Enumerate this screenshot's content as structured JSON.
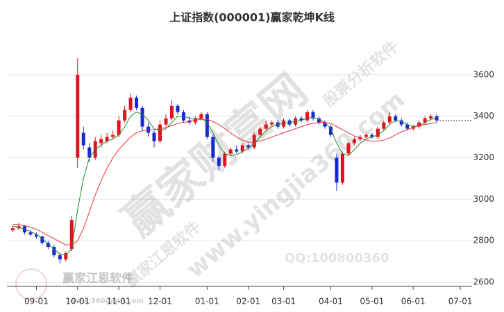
{
  "chart_data": {
    "type": "candlestick",
    "title": "上证指数(000001)赢家乾坤K线",
    "watermarks": [
      "赢家财富网",
      "www.yingjia360.com",
      "股票分析软件",
      "赢家江恩软件",
      "赢家江恩软件",
      "QQ:100800360",
      "www.360gann.com"
    ],
    "x": [
      0,
      1,
      2,
      3,
      4,
      5,
      6,
      7,
      8,
      9,
      10,
      11,
      12,
      13,
      14,
      15,
      16,
      17,
      18,
      19,
      20,
      21,
      22,
      23,
      24,
      25,
      26,
      27,
      28,
      29,
      30,
      31,
      32,
      33,
      34,
      35,
      36,
      37,
      38,
      39,
      40,
      41,
      42,
      43,
      44,
      45,
      46,
      47,
      48,
      49,
      50,
      51,
      52,
      53,
      54,
      55,
      56,
      57,
      58,
      59,
      60,
      61,
      62,
      63,
      64,
      65,
      66,
      67,
      68,
      69,
      70,
      71,
      72
    ],
    "open": [
      2850,
      2860,
      2870,
      2840,
      2830,
      2820,
      2790,
      2770,
      2730,
      2710,
      2760,
      3200,
      3320,
      3250,
      3200,
      3270,
      3280,
      3300,
      3310,
      3380,
      3430,
      3490,
      3440,
      3350,
      3320,
      3280,
      3360,
      3390,
      3450,
      3420,
      3380,
      3370,
      3390,
      3410,
      3300,
      3200,
      3160,
      3220,
      3240,
      3230,
      3260,
      3250,
      3310,
      3340,
      3360,
      3370,
      3350,
      3380,
      3360,
      3390,
      3380,
      3420,
      3390,
      3370,
      3350,
      3200,
      3080,
      3220,
      3270,
      3290,
      3300,
      3310,
      3300,
      3340,
      3370,
      3400,
      3380,
      3360,
      3340,
      3350,
      3370,
      3390,
      3400
    ],
    "high": [
      2875,
      2885,
      2875,
      2850,
      2840,
      2825,
      2800,
      2780,
      2740,
      2750,
      2920,
      3680,
      3350,
      3270,
      3300,
      3310,
      3320,
      3330,
      3400,
      3450,
      3510,
      3500,
      3450,
      3370,
      3330,
      3380,
      3410,
      3480,
      3460,
      3430,
      3400,
      3400,
      3420,
      3420,
      3310,
      3210,
      3230,
      3250,
      3260,
      3270,
      3270,
      3320,
      3350,
      3380,
      3380,
      3380,
      3390,
      3390,
      3400,
      3400,
      3430,
      3430,
      3400,
      3380,
      3360,
      3220,
      3230,
      3280,
      3300,
      3310,
      3320,
      3320,
      3350,
      3380,
      3420,
      3410,
      3390,
      3370,
      3360,
      3380,
      3400,
      3410,
      3410
    ],
    "low": [
      2840,
      2850,
      2830,
      2820,
      2810,
      2780,
      2760,
      2720,
      2690,
      2700,
      2750,
      3150,
      3240,
      3180,
      3190,
      3250,
      3270,
      3290,
      3300,
      3370,
      3420,
      3430,
      3330,
      3300,
      3250,
      3270,
      3350,
      3380,
      3410,
      3370,
      3360,
      3360,
      3380,
      3290,
      3180,
      3140,
      3150,
      3210,
      3220,
      3220,
      3240,
      3240,
      3300,
      3330,
      3350,
      3340,
      3340,
      3350,
      3350,
      3370,
      3370,
      3380,
      3360,
      3340,
      3300,
      3040,
      3070,
      3210,
      3260,
      3280,
      3290,
      3290,
      3290,
      3330,
      3360,
      3370,
      3350,
      3330,
      3330,
      3340,
      3360,
      3380,
      3370
    ],
    "close": [
      2860,
      2870,
      2840,
      2830,
      2820,
      2790,
      2770,
      2730,
      2710,
      2740,
      2900,
      3600,
      3260,
      3200,
      3280,
      3290,
      3300,
      3310,
      3380,
      3430,
      3490,
      3440,
      3350,
      3320,
      3280,
      3360,
      3390,
      3450,
      3420,
      3380,
      3370,
      3390,
      3410,
      3300,
      3200,
      3160,
      3220,
      3240,
      3230,
      3260,
      3250,
      3310,
      3340,
      3360,
      3370,
      3350,
      3380,
      3360,
      3390,
      3380,
      3420,
      3390,
      3370,
      3350,
      3310,
      3080,
      3220,
      3270,
      3290,
      3300,
      3310,
      3300,
      3340,
      3370,
      3400,
      3380,
      3360,
      3340,
      3350,
      3370,
      3390,
      3400,
      3380
    ],
    "up_color": "#e0141e",
    "down_color": "#1a28d0",
    "series": [
      {
        "color": "#1f8a2a",
        "values": [
          2870,
          2865,
          2855,
          2845,
          2830,
          2810,
          2785,
          2760,
          2735,
          2730,
          2760,
          2950,
          3100,
          3200,
          3240,
          3260,
          3280,
          3290,
          3310,
          3350,
          3400,
          3420,
          3410,
          3380,
          3340,
          3330,
          3340,
          3370,
          3400,
          3400,
          3390,
          3385,
          3390,
          3370,
          3320,
          3260,
          3220,
          3210,
          3215,
          3230,
          3245,
          3270,
          3300,
          3330,
          3350,
          3360,
          3365,
          3370,
          3375,
          3380,
          3390,
          3395,
          3385,
          3370,
          3340,
          3270,
          3220,
          3210,
          3240,
          3270,
          3290,
          3300,
          3310,
          3330,
          3360,
          3380,
          3375,
          3360,
          3350,
          3355,
          3370,
          3385,
          3390
        ]
      },
      {
        "color": "#e8303a",
        "values": [
          2880,
          2878,
          2872,
          2865,
          2855,
          2840,
          2825,
          2810,
          2795,
          2780,
          2780,
          2800,
          2860,
          2940,
          3020,
          3090,
          3150,
          3200,
          3240,
          3270,
          3300,
          3320,
          3330,
          3335,
          3335,
          3340,
          3345,
          3355,
          3365,
          3370,
          3375,
          3380,
          3385,
          3385,
          3375,
          3360,
          3340,
          3320,
          3300,
          3285,
          3275,
          3275,
          3280,
          3290,
          3300,
          3310,
          3320,
          3330,
          3340,
          3350,
          3360,
          3365,
          3370,
          3370,
          3365,
          3350,
          3335,
          3320,
          3305,
          3295,
          3285,
          3280,
          3280,
          3285,
          3295,
          3310,
          3325,
          3335,
          3345,
          3355,
          3360,
          3365,
          3370
        ]
      }
    ],
    "xlim": [
      -1,
      78
    ],
    "xticks": [
      {
        "value": 4,
        "label": "09-01"
      },
      {
        "value": 11,
        "label": "10-01"
      },
      {
        "value": 18,
        "label": "11-01"
      },
      {
        "value": 25,
        "label": "12-01"
      },
      {
        "value": 33,
        "label": "01-01"
      },
      {
        "value": 40,
        "label": "02-01"
      },
      {
        "value": 46,
        "label": "03-01"
      },
      {
        "value": 54,
        "label": "04-01"
      },
      {
        "value": 61,
        "label": "05-01"
      },
      {
        "value": 68,
        "label": "06-01"
      },
      {
        "value": 76,
        "label": "07-01"
      }
    ],
    "ylim": [
      2580,
      3810
    ],
    "yticks": [
      2600,
      2800,
      3000,
      3200,
      3400,
      3600
    ],
    "grid": true
  }
}
